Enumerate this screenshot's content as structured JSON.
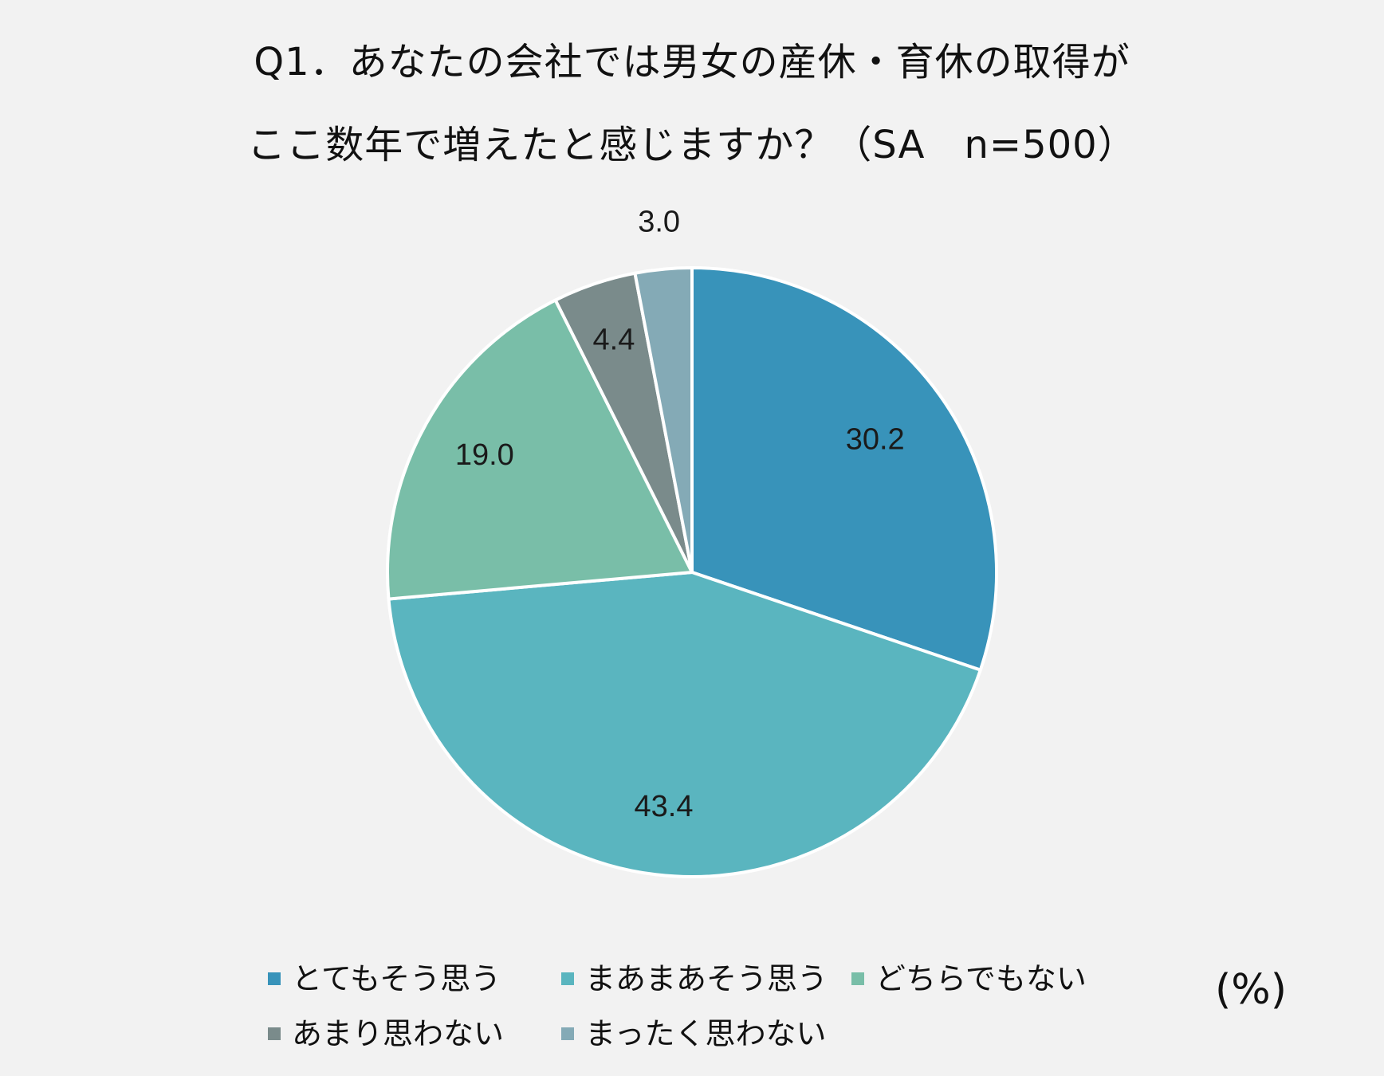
{
  "chart_data": {
    "type": "pie",
    "title": "Q1．あなたの会社では男女の産休・育休の取得が",
    "subtitle": "ここ数年で増えたと感じますか？（SA　n=500）",
    "unit": "(%)",
    "categories": [
      "とてもそう思う",
      "まあまあそう思う",
      "どちらでもない",
      "あまり思わない",
      "まったく思わない"
    ],
    "values": [
      30.2,
      43.4,
      19.0,
      4.4,
      3.0
    ],
    "value_labels": [
      "30.2",
      "43.4",
      "19.0",
      "4.4",
      "3.0"
    ],
    "colors": [
      "#3893ba",
      "#5ab5bf",
      "#79bea8",
      "#7a8b8b",
      "#84aab6"
    ],
    "legend_position": "bottom"
  }
}
